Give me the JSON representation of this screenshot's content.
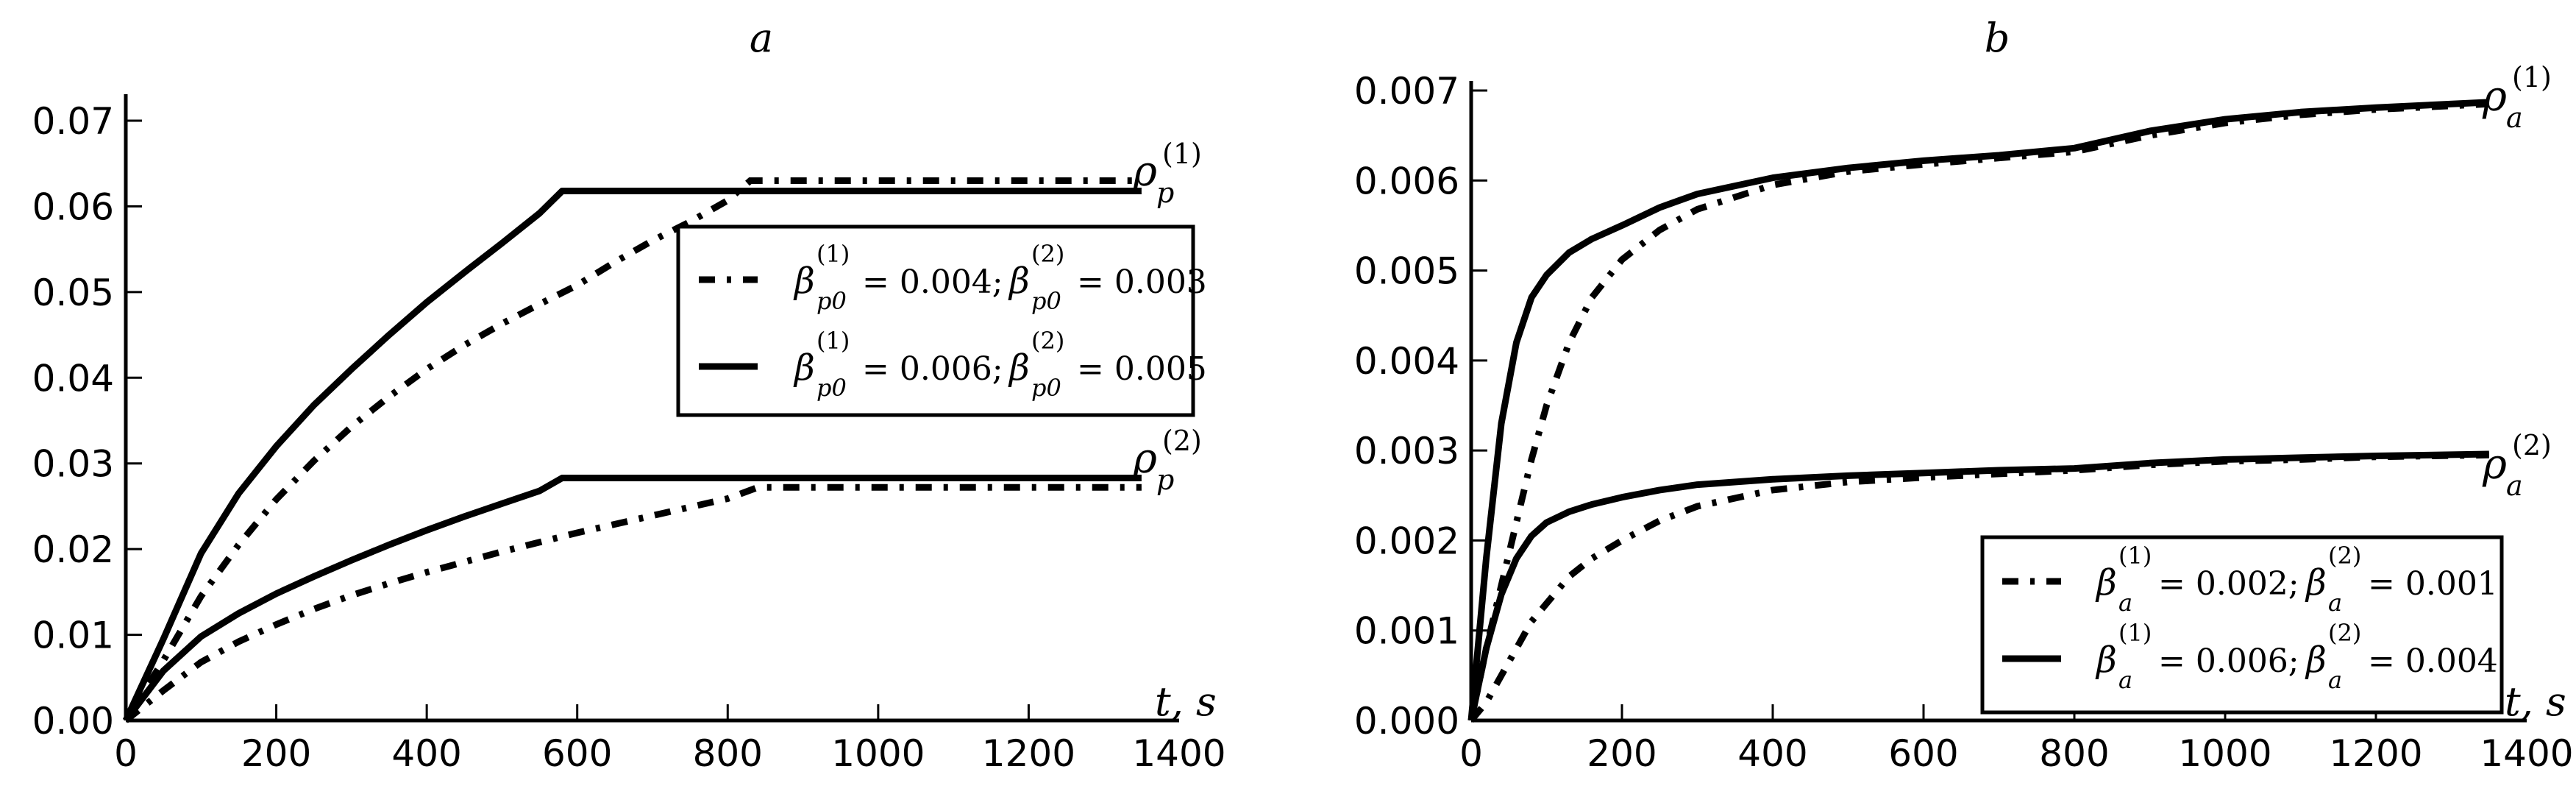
{
  "chart_data": [
    {
      "id": "a",
      "type": "line",
      "title": "a",
      "xlabel": "t, s",
      "ylabel": "",
      "xlim": [
        0,
        1400
      ],
      "ylim": [
        0,
        0.072
      ],
      "xticks": [
        "0",
        "200",
        "400",
        "600",
        "800",
        "1000",
        "1200",
        "1400"
      ],
      "yticks": [
        "0.00",
        "0.01",
        "0.02",
        "0.03",
        "0.04",
        "0.05",
        "0.06",
        "0.07"
      ],
      "grid": false,
      "legend_position": "upper right (inside)",
      "legend": [
        {
          "style": "dashdot",
          "label": "β_p0^(1) = 0.004; β_p0^(2) = 0.003"
        },
        {
          "style": "solid",
          "label": "β_p0^(1) = 0.006; β_p0^(2) = 0.005"
        }
      ],
      "annotations": [
        {
          "text": "ρ_p^(1)",
          "x": 1360,
          "y": 0.062
        },
        {
          "text": "ρ_p^(2)",
          "x": 1360,
          "y": 0.028
        }
      ],
      "series": [
        {
          "name": "ρ_p^(1), β^(1)=0.006",
          "style": "solid",
          "x": [
            0,
            50,
            100,
            150,
            200,
            250,
            300,
            350,
            400,
            450,
            500,
            550,
            580,
            700,
            900,
            1100,
            1350
          ],
          "y": [
            0,
            0.0095,
            0.0195,
            0.0265,
            0.032,
            0.0368,
            0.041,
            0.045,
            0.0488,
            0.0523,
            0.0557,
            0.0592,
            0.0618,
            0.0618,
            0.0618,
            0.0618,
            0.0618
          ]
        },
        {
          "name": "ρ_p^(1), β^(1)=0.004",
          "style": "dashdot",
          "x": [
            0,
            50,
            100,
            150,
            200,
            250,
            300,
            350,
            400,
            450,
            500,
            550,
            600,
            650,
            700,
            750,
            800,
            830,
            900,
            1100,
            1350
          ],
          "y": [
            0,
            0.007,
            0.0145,
            0.0205,
            0.0258,
            0.0303,
            0.0343,
            0.0378,
            0.041,
            0.0438,
            0.0463,
            0.0486,
            0.0508,
            0.0535,
            0.056,
            0.0582,
            0.0607,
            0.063,
            0.063,
            0.063,
            0.063
          ]
        },
        {
          "name": "ρ_p^(2), β^(2)=0.005",
          "style": "solid",
          "x": [
            0,
            50,
            100,
            150,
            200,
            250,
            300,
            350,
            400,
            450,
            500,
            550,
            580,
            700,
            900,
            1100,
            1350
          ],
          "y": [
            0,
            0.0058,
            0.0098,
            0.0125,
            0.0148,
            0.0168,
            0.0187,
            0.0205,
            0.0222,
            0.0238,
            0.0253,
            0.0268,
            0.0283,
            0.0283,
            0.0283,
            0.0283,
            0.0283
          ]
        },
        {
          "name": "ρ_p^(2), β^(2)=0.003",
          "style": "dashdot",
          "x": [
            0,
            50,
            100,
            150,
            200,
            250,
            300,
            350,
            400,
            450,
            500,
            550,
            600,
            650,
            700,
            750,
            800,
            840,
            900,
            1100,
            1350
          ],
          "y": [
            0,
            0.0035,
            0.0068,
            0.0092,
            0.0112,
            0.013,
            0.0146,
            0.016,
            0.0173,
            0.0185,
            0.0197,
            0.0208,
            0.0219,
            0.0229,
            0.0239,
            0.0249,
            0.0259,
            0.0272,
            0.0272,
            0.0272,
            0.0272
          ]
        }
      ]
    },
    {
      "id": "b",
      "type": "line",
      "title": "b",
      "xlabel": "t, s",
      "ylabel": "",
      "xlim": [
        0,
        1400
      ],
      "ylim": [
        0,
        0.0072
      ],
      "xticks": [
        "0",
        "200",
        "400",
        "600",
        "800",
        "1000",
        "1200",
        "1400"
      ],
      "yticks": [
        "0.000",
        "0.001",
        "0.002",
        "0.003",
        "0.004",
        "0.005",
        "0.006",
        "0.007"
      ],
      "grid": false,
      "legend_position": "lower right (inside)",
      "legend": [
        {
          "style": "dashdot",
          "label": "β_a^(1) = 0.002; β_a^(2) = 0.001"
        },
        {
          "style": "solid",
          "label": "β_a^(1) = 0.006; β_a^(2) = 0.004"
        }
      ],
      "annotations": [
        {
          "text": "ρ_a^(1)",
          "x": 1360,
          "y": 0.0069
        },
        {
          "text": "ρ_a^(2)",
          "x": 1360,
          "y": 0.003
        }
      ],
      "series": [
        {
          "name": "ρ_a^(1), β^(1)=0.006",
          "style": "solid",
          "x": [
            0,
            20,
            40,
            60,
            80,
            100,
            130,
            160,
            200,
            250,
            300,
            400,
            500,
            600,
            700,
            800,
            900,
            1000,
            1100,
            1200,
            1350
          ],
          "y": [
            0,
            0.0018,
            0.0033,
            0.0042,
            0.0047,
            0.00495,
            0.0052,
            0.00535,
            0.0055,
            0.0057,
            0.00585,
            0.00603,
            0.00614,
            0.00622,
            0.00628,
            0.00636,
            0.00655,
            0.00668,
            0.00676,
            0.00681,
            0.00687
          ]
        },
        {
          "name": "ρ_a^(1), β^(1)=0.002",
          "style": "dashdot",
          "x": [
            0,
            20,
            40,
            60,
            80,
            100,
            130,
            160,
            200,
            250,
            300,
            400,
            500,
            600,
            700,
            800,
            900,
            1000,
            1100,
            1200,
            1350
          ],
          "y": [
            0,
            0.0008,
            0.0015,
            0.0022,
            0.0029,
            0.0035,
            0.0042,
            0.0047,
            0.00512,
            0.00545,
            0.00568,
            0.00595,
            0.0061,
            0.00618,
            0.00625,
            0.00632,
            0.0065,
            0.00664,
            0.00673,
            0.00679,
            0.00685
          ]
        },
        {
          "name": "ρ_a^(2), β^(2)=0.004",
          "style": "solid",
          "x": [
            0,
            20,
            40,
            60,
            80,
            100,
            130,
            160,
            200,
            250,
            300,
            400,
            500,
            600,
            700,
            800,
            900,
            1000,
            1100,
            1200,
            1350
          ],
          "y": [
            0,
            0.0008,
            0.0014,
            0.0018,
            0.00205,
            0.0022,
            0.00232,
            0.0024,
            0.00248,
            0.00256,
            0.00262,
            0.00268,
            0.00272,
            0.00275,
            0.00278,
            0.0028,
            0.00286,
            0.0029,
            0.00292,
            0.00294,
            0.00296
          ]
        },
        {
          "name": "ρ_a^(2), β^(2)=0.001",
          "style": "dashdot",
          "x": [
            0,
            20,
            40,
            60,
            80,
            100,
            130,
            160,
            200,
            250,
            300,
            400,
            500,
            600,
            700,
            800,
            900,
            1000,
            1100,
            1200,
            1350
          ],
          "y": [
            0,
            0.0002,
            0.0005,
            0.0008,
            0.0011,
            0.0013,
            0.0016,
            0.0018,
            0.002,
            0.00222,
            0.00238,
            0.00256,
            0.00265,
            0.0027,
            0.00274,
            0.00278,
            0.00284,
            0.00288,
            0.0029,
            0.00293,
            0.00295
          ]
        }
      ]
    }
  ],
  "panels": {
    "a": {
      "title": "a",
      "xlabel": "t, s",
      "ann1_base": "ρ",
      "ann1_sub": "p",
      "ann1_sup": "(1)",
      "ann2_base": "ρ",
      "ann2_sub": "p",
      "ann2_sup": "(2)",
      "legend1": {
        "b": "β",
        "sub": "p0",
        "sup1": "(1)",
        "sup2": "(2)",
        "eq1": " = 0.004; ",
        "eq2": " = 0.003"
      },
      "legend2": {
        "b": "β",
        "sub": "p0",
        "sup1": "(1)",
        "sup2": "(2)",
        "eq1": " = 0.006; ",
        "eq2": " = 0.005"
      }
    },
    "b": {
      "title": "b",
      "xlabel": "t, s",
      "ann1_base": "ρ",
      "ann1_sub": "a",
      "ann1_sup": "(1)",
      "ann2_base": "ρ",
      "ann2_sub": "a",
      "ann2_sup": "(2)",
      "legend1": {
        "b": "β",
        "sub": "a",
        "sup1": "(1)",
        "sup2": "(2)",
        "eq1": " = 0.002; ",
        "eq2": " = 0.001"
      },
      "legend2": {
        "b": "β",
        "sub": "a",
        "sup1": "(1)",
        "sup2": "(2)",
        "eq1": " = 0.006; ",
        "eq2": " = 0.004"
      }
    }
  }
}
